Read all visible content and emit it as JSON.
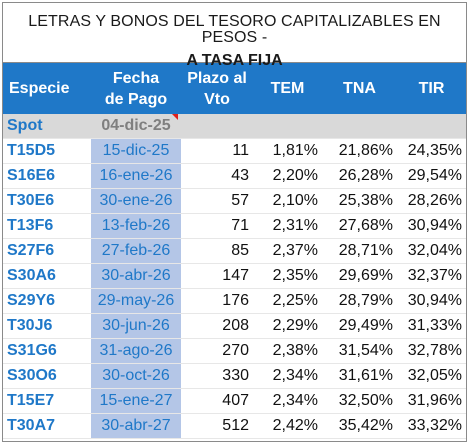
{
  "title": {
    "line1": "LETRAS Y BONOS DEL TESORO CAPITALIZABLES EN PESOS -",
    "line2": "A TASA FIJA"
  },
  "headers": {
    "especie": "Especie",
    "fecha_1": "Fecha",
    "fecha_2": "de Pago",
    "plazo_1": "Plazo al",
    "plazo_2": "Vto",
    "tem": "TEM",
    "tna": "TNA",
    "tir": "TIR"
  },
  "spot": {
    "especie": "Spot",
    "fecha": "04-dic-25"
  },
  "rows": [
    {
      "especie": "T15D5",
      "fecha": "15-dic-25",
      "plazo": "11",
      "tem": "1,81%",
      "tna": "21,86%",
      "tir": "24,35%"
    },
    {
      "especie": "S16E6",
      "fecha": "16-ene-26",
      "plazo": "43",
      "tem": "2,20%",
      "tna": "26,28%",
      "tir": "29,54%"
    },
    {
      "especie": "T30E6",
      "fecha": "30-ene-26",
      "plazo": "57",
      "tem": "2,10%",
      "tna": "25,38%",
      "tir": "28,26%"
    },
    {
      "especie": "T13F6",
      "fecha": "13-feb-26",
      "plazo": "71",
      "tem": "2,31%",
      "tna": "27,68%",
      "tir": "30,94%"
    },
    {
      "especie": "S27F6",
      "fecha": "27-feb-26",
      "plazo": "85",
      "tem": "2,37%",
      "tna": "28,71%",
      "tir": "32,04%"
    },
    {
      "especie": "S30A6",
      "fecha": "30-abr-26",
      "plazo": "147",
      "tem": "2,35%",
      "tna": "29,69%",
      "tir": "32,37%"
    },
    {
      "especie": "S29Y6",
      "fecha": "29-may-26",
      "plazo": "176",
      "tem": "2,25%",
      "tna": "28,79%",
      "tir": "30,94%"
    },
    {
      "especie": "T30J6",
      "fecha": "30-jun-26",
      "plazo": "208",
      "tem": "2,29%",
      "tna": "29,49%",
      "tir": "31,33%"
    },
    {
      "especie": "S31G6",
      "fecha": "31-ago-26",
      "plazo": "270",
      "tem": "2,38%",
      "tna": "31,54%",
      "tir": "32,78%"
    },
    {
      "especie": "S30O6",
      "fecha": "30-oct-26",
      "plazo": "330",
      "tem": "2,34%",
      "tna": "31,61%",
      "tir": "32,05%"
    },
    {
      "especie": "T15E7",
      "fecha": "15-ene-27",
      "plazo": "407",
      "tem": "2,34%",
      "tna": "32,50%",
      "tir": "31,96%"
    },
    {
      "especie": "T30A7",
      "fecha": "30-abr-27",
      "plazo": "512",
      "tem": "2,42%",
      "tna": "35,42%",
      "tir": "33,32%"
    }
  ],
  "colors": {
    "header_bg": "#1f78c8",
    "date_col_bg": "#b4c6e7",
    "spot_bg": "#d9d9d9",
    "flag": "#e0201c"
  }
}
